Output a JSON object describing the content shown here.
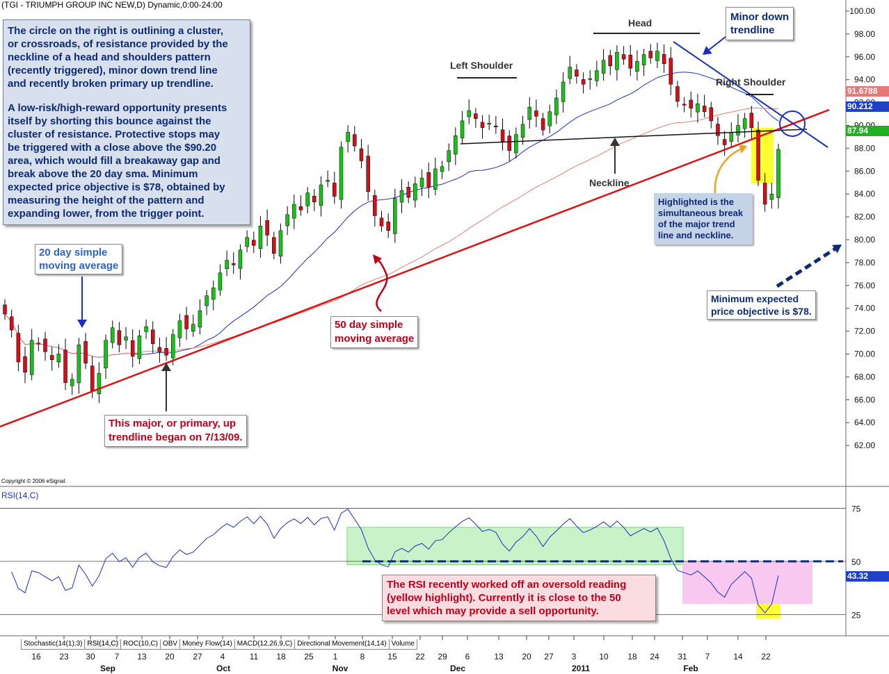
{
  "header": {
    "title": "(TGI - TRIUMPH GROUP INC NEW,D) Dynamic,0:00-24:00"
  },
  "copyright": "Copyright © 2006 eSignal.",
  "rsi_label": "RSI(14,C)",
  "tabs": [
    "Stochastic(14(1),3)",
    "RSI(14,C)",
    "ROC(10,C)",
    "OBV",
    "Money Flow(14)",
    "MACD(12,26,9,C)",
    "Directional Movement(14,14)",
    "Volume"
  ],
  "colors": {
    "up": "#18c218",
    "down": "#d0101a",
    "sma20": "#1a2fc0",
    "sma50": "#e08070",
    "trend": "#e01010",
    "rsi": "#1a2fc0",
    "badge_sma50": "#e87878",
    "badge_sma20": "#2040c8",
    "badge_price": "#20b020",
    "badge_rsi": "#2040c8"
  },
  "annotations": {
    "main_text": [
      "The circle on the right is outlining a cluster,",
      "or crossroads, of resistance provided by the",
      "neckline of a head and shoulders pattern",
      "(recently triggered), minor down trend line",
      "and recently broken primary up trendline.",
      "",
      "A low-risk/high-reward opportunity presents",
      "itself by shorting this bounce against the",
      "cluster of resistance. Protective stops may",
      "be triggered with a close above the $90.20",
      "area, which would fill a breakaway gap and",
      "break above the 20 day sma. Minimum",
      "expected price objective is $78, obtained by",
      "measuring the height of the pattern and",
      "expanding lower, from the trigger point."
    ],
    "sma20_note": [
      "20 day simple",
      "moving average"
    ],
    "sma50_note": [
      "50 day simple",
      "moving average"
    ],
    "trendline_note": [
      "This major, or primary, up",
      "trendline began on 7/13/09."
    ],
    "minor_down_note": [
      "Minor down",
      "trendline"
    ],
    "highlight_note": [
      "Highlighted is the",
      "simultaneous break",
      "of the major trend",
      "line and neckline."
    ],
    "objective_note": [
      "Minimum expected",
      "price objective is $78."
    ],
    "rsi_note": [
      "The RSI recently worked off an oversold reading",
      "(yellow highlight). Currently it is close to the 50",
      "level which may provide a sell opportunity."
    ],
    "head": "Head",
    "left_shoulder": "Left Shoulder",
    "right_shoulder": "Right Shoulder",
    "neckline": "Neckline"
  },
  "badges": {
    "sma50": "91.6788",
    "sma20": "90.212",
    "price": "87.94",
    "rsi": "43.32"
  },
  "chart_data": [
    {
      "type": "candlestick",
      "title": "(TGI - TRIUMPH GROUP INC NEW,D) Dynamic,0:00-24:00",
      "ylim": [
        60.5,
        101
      ],
      "y_ticks": [
        "100.00",
        "98.00",
        "96.00",
        "94.00",
        "92.00",
        "90.00",
        "88.00",
        "86.00",
        "84.00",
        "82.00",
        "80.00",
        "78.00",
        "76.00",
        "74.00",
        "72.00",
        "70.00",
        "68.00",
        "66.00",
        "64.00",
        "62.00"
      ],
      "x_ticks": [
        "16",
        "23",
        "30",
        "7",
        "13",
        "20",
        "27",
        "4",
        "11",
        "18",
        "25",
        "1",
        "8",
        "15",
        "22",
        "29",
        "6",
        "13",
        "20",
        "27",
        "3",
        "10",
        "18",
        "24",
        "31",
        "7",
        "14",
        "22"
      ],
      "months": [
        "Sep",
        "Oct",
        "Nov",
        "Dec",
        "2011",
        "Feb"
      ],
      "closes": [
        73.5,
        72.1,
        69.3,
        68.4,
        71.2,
        70.9,
        70.2,
        69.5,
        70.0,
        67.5,
        67.8,
        70.8,
        69.2,
        66.8,
        68.3,
        71.2,
        72.3,
        70.8,
        71.5,
        69.8,
        71.6,
        72.4,
        70.9,
        70.2,
        69.9,
        71.7,
        72.9,
        72.2,
        72.6,
        73.8,
        75.1,
        75.8,
        77.1,
        78.2,
        77.8,
        79.1,
        80.2,
        79.5,
        81.2,
        80.4,
        78.8,
        80.8,
        82.2,
        83.1,
        82.6,
        84.1,
        83.3,
        84.8,
        85.2,
        83.8,
        88.1,
        89.4,
        88.2,
        86.9,
        84.2,
        82.1,
        81.2,
        80.8,
        83.6,
        84.3,
        83.7,
        84.9,
        85.4,
        84.6,
        86.2,
        86.4,
        87.8,
        89.1,
        90.4,
        91.3,
        90.6,
        89.8,
        90.2,
        89.9,
        88.6,
        87.8,
        89.2,
        90.1,
        91.6,
        90.8,
        89.6,
        91.2,
        92.4,
        93.8,
        95.1,
        94.3,
        93.6,
        94.1,
        94.8,
        95.7,
        95.2,
        96.4,
        95.8,
        95.0,
        95.6,
        96.2,
        95.9,
        96.5,
        95.4,
        93.6,
        92.1,
        91.8,
        91.5,
        91.9,
        91.2,
        90.4,
        89.1,
        88.3,
        89.4,
        90.0,
        90.6,
        89.8,
        85.2,
        83.1,
        84.0,
        87.9
      ],
      "sma20_endpoint": 90.212,
      "sma50_endpoint": 91.6788
    },
    {
      "type": "line",
      "title": "RSI(14,C)",
      "ylim": [
        15,
        82
      ],
      "y_ticks": [
        "75",
        "50",
        "25"
      ],
      "last_value": 43.32
    }
  ]
}
